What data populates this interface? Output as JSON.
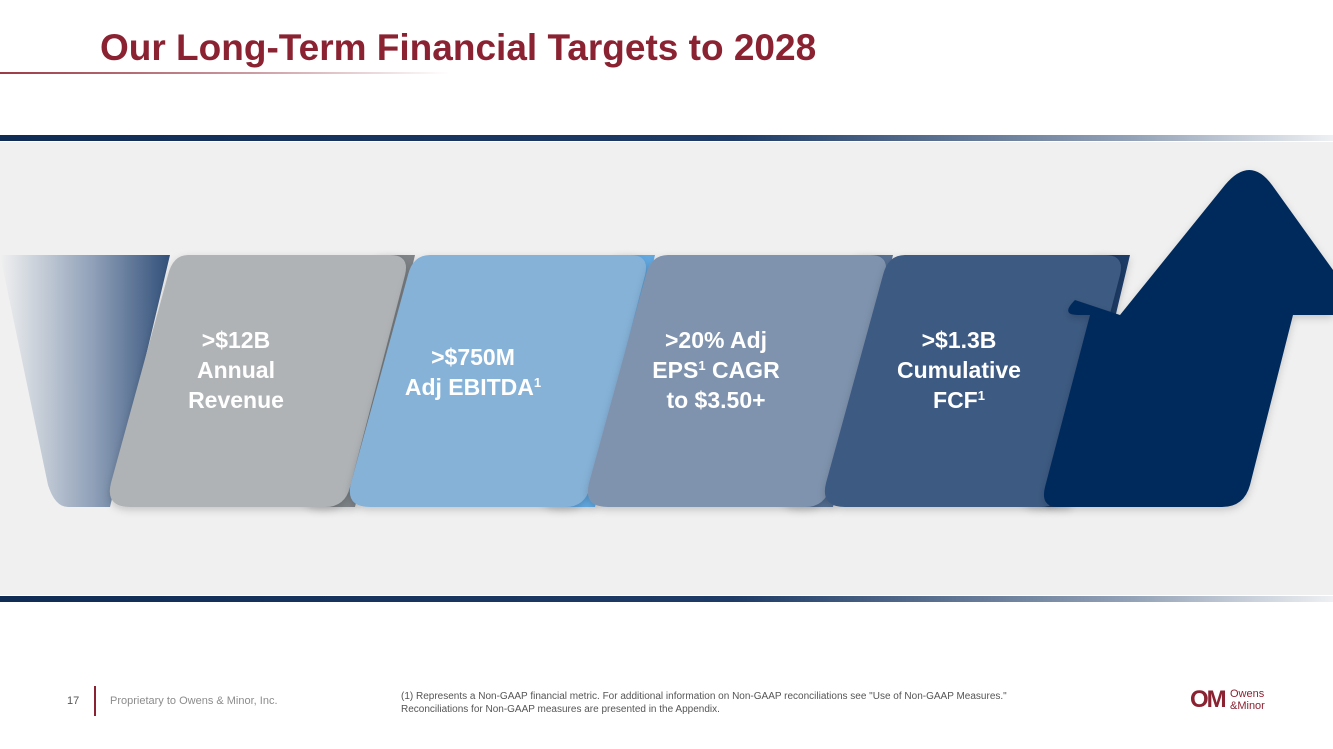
{
  "slide": {
    "title": "Our Long-Term Financial Targets to 2028",
    "page_number": "17",
    "proprietary": "Proprietary to Owens & Minor, Inc."
  },
  "targets": [
    {
      "lines": [
        ">$12B",
        "Annual",
        "Revenue"
      ],
      "color": "#b0b3b6"
    },
    {
      "line1": ">$750M",
      "line2_main": "Adj EBITDA",
      "line2_sup": "1",
      "color": "#86b2d8"
    },
    {
      "line1": ">20% Adj",
      "line2_main": "EPS",
      "line2_sup": "1",
      "line2_rest": " CAGR",
      "line3": "to $3.50+",
      "color": "#7f93ae"
    },
    {
      "line1": ">$1.3B",
      "line2": "Cumulative",
      "line3_main": "FCF",
      "line3_sup": "1",
      "color": "#3e5a82"
    }
  ],
  "colors": {
    "brand_red": "#8a2232",
    "navy": "#0f2c55",
    "arrow_head": "#002b5c"
  },
  "footnote": {
    "line1": "(1) Represents a Non-GAAP financial metric. For additional information on Non-GAAP reconciliations see \"Use of Non-GAAP Measures.\"",
    "line2": "Reconciliations for Non-GAAP measures are presented in the Appendix."
  },
  "logo": {
    "mark": "OM",
    "word1": "Owens",
    "word2": "&Minor"
  }
}
